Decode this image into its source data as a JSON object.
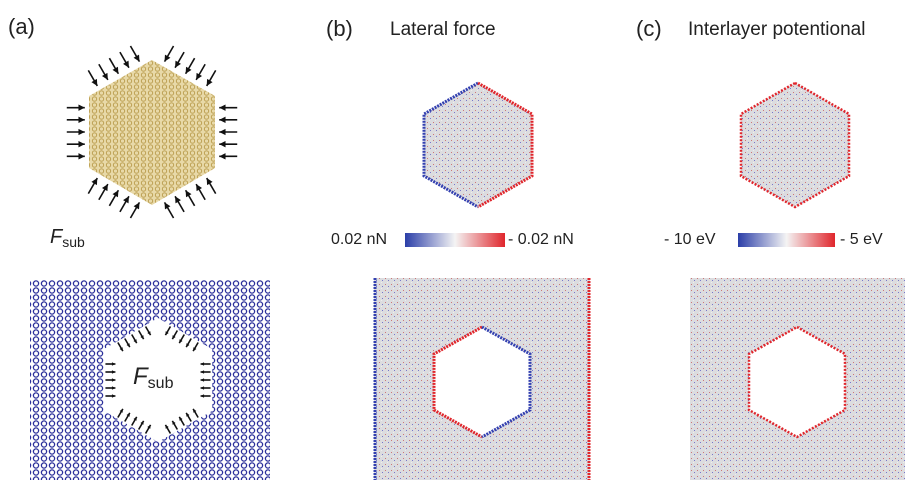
{
  "panels": [
    {
      "label": "(a)",
      "force_symbol": "F",
      "force_subscript": "sub"
    },
    {
      "label": "(b)",
      "title": "Lateral force",
      "colorbar": {
        "min_label": "0.02 nN",
        "max_label": "- 0.02 nN"
      }
    },
    {
      "label": "(c)",
      "title": "Interlayer potentional",
      "colorbar": {
        "min_label": "- 10 eV",
        "max_label": "- 5 eV"
      }
    }
  ]
}
